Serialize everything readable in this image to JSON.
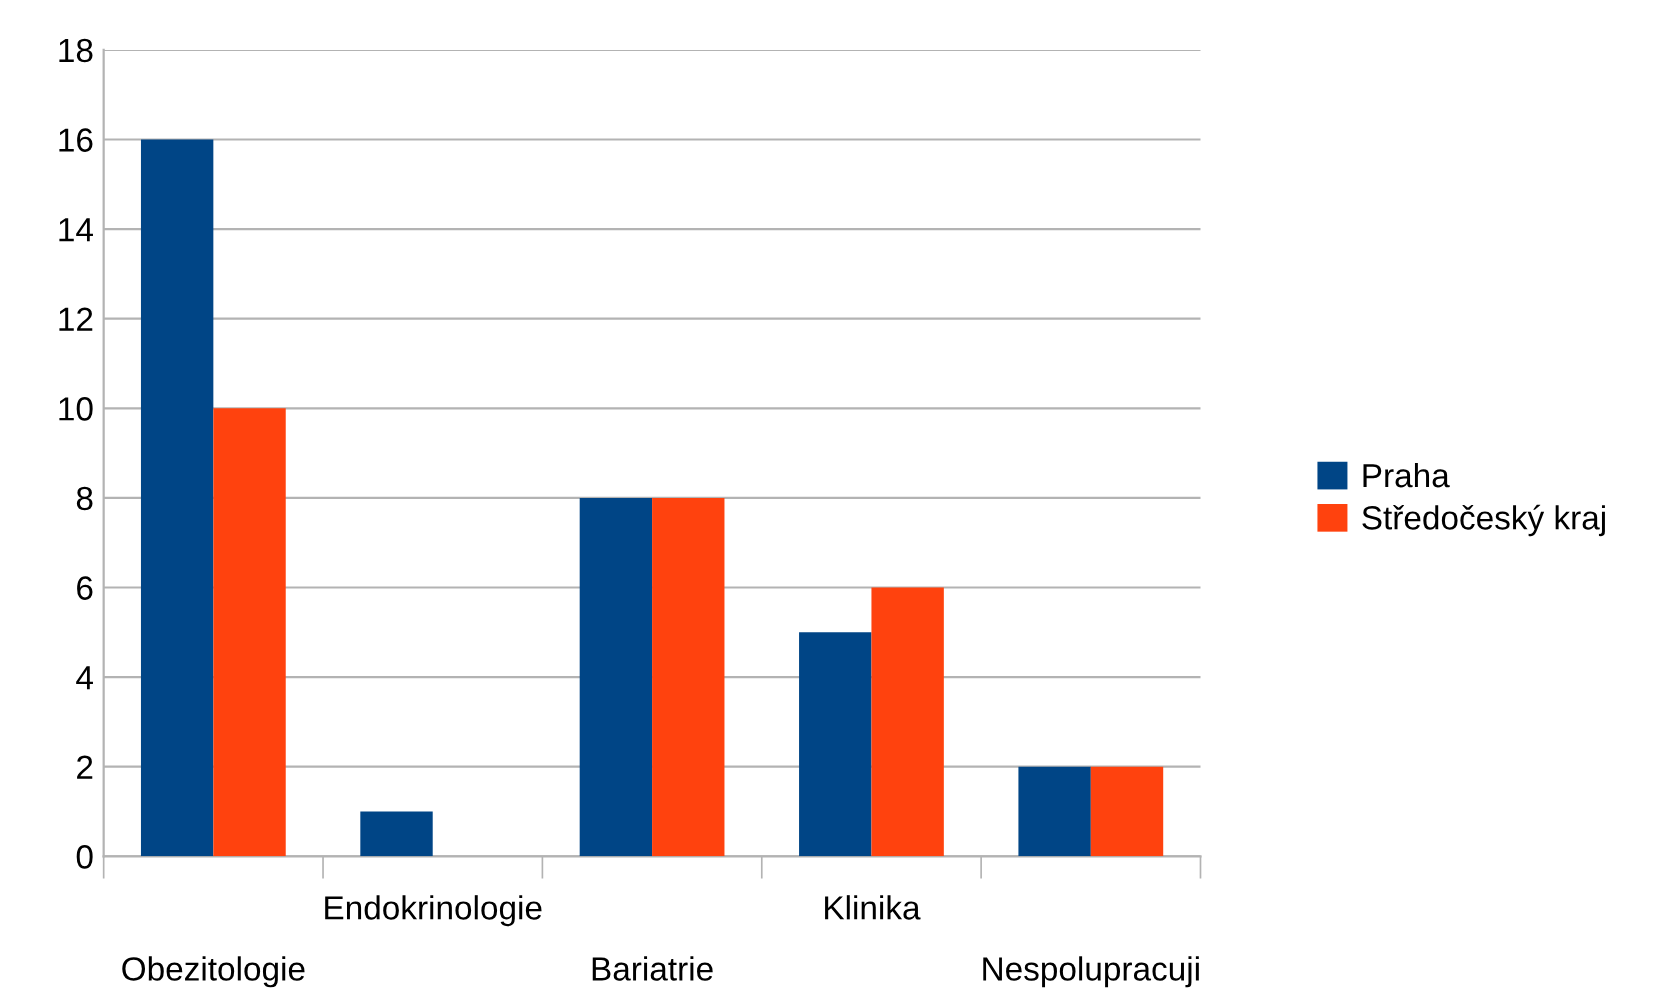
{
  "chart_data": {
    "type": "bar",
    "categories": [
      "Obezitologie",
      "Endokrinologie",
      "Bariatrie",
      "Klinika",
      "Nespolupracuji"
    ],
    "series": [
      {
        "name": "Praha",
        "color": "#004586",
        "values": [
          16,
          1,
          8,
          5,
          2
        ]
      },
      {
        "name": "Středočeský kraj",
        "color": "#ff420e",
        "values": [
          10,
          0,
          8,
          6,
          2
        ]
      }
    ],
    "ylim": [
      0,
      18
    ],
    "yticks": [
      0,
      2,
      4,
      6,
      8,
      10,
      12,
      14,
      16,
      18
    ],
    "grid": "y",
    "legend": "right"
  }
}
